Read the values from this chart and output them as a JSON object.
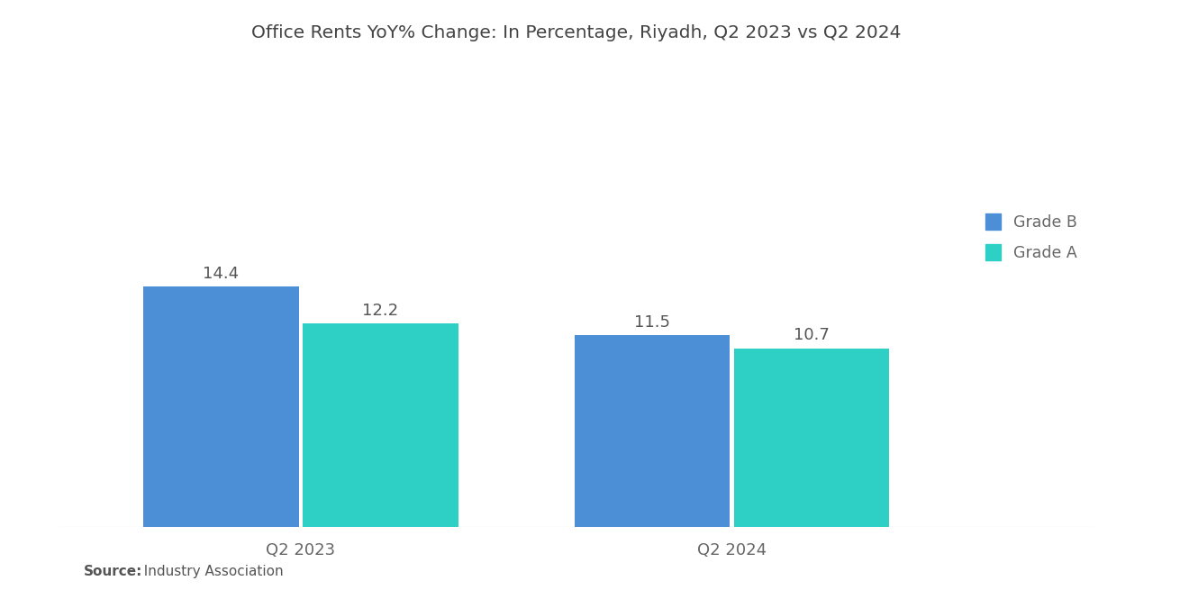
{
  "title": "Office Rents YoY% Change: In Percentage, Riyadh, Q2 2023 vs Q2 2024",
  "groups": [
    "Q2 2023",
    "Q2 2024"
  ],
  "series": [
    {
      "label": "Grade B",
      "values": [
        14.4,
        11.5
      ],
      "color": "#4D8FD6"
    },
    {
      "label": "Grade A",
      "values": [
        12.2,
        10.7
      ],
      "color": "#2ECFC4"
    }
  ],
  "ylim": [
    0,
    28
  ],
  "bar_width": 0.18,
  "title_fontsize": 14.5,
  "tick_fontsize": 13,
  "legend_fontsize": 12.5,
  "source_bold": "Source:",
  "source_rest": "  Industry Association",
  "background_color": "#ffffff",
  "value_label_fontsize": 13,
  "group_centers": [
    0.28,
    0.78
  ],
  "xlim": [
    0.0,
    1.2
  ]
}
